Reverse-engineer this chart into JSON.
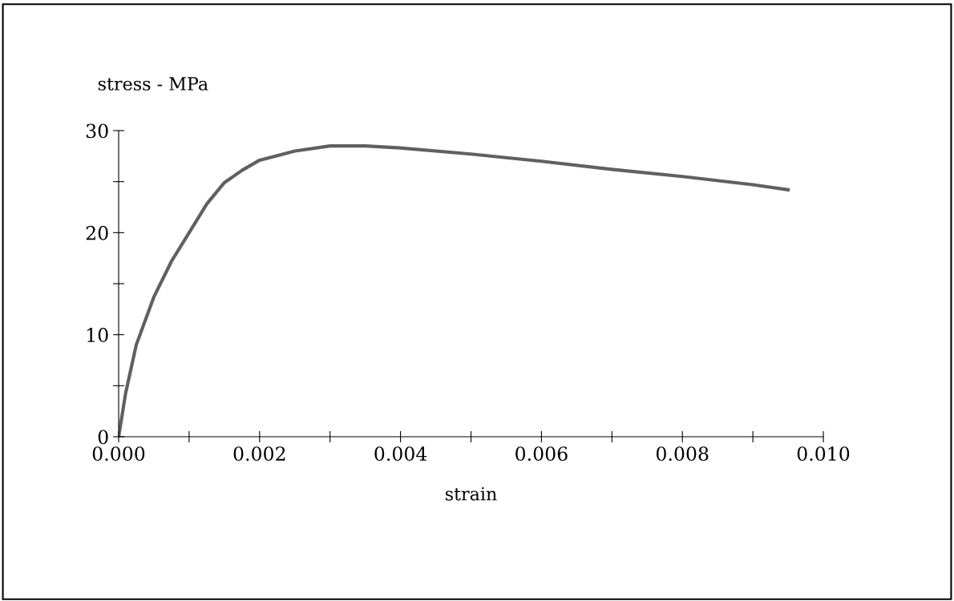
{
  "chart_data": {
    "type": "line",
    "ylabel": "stress - MPa",
    "xlabel": "strain",
    "x": [
      0,
      0.0001,
      0.00025,
      0.0005,
      0.00075,
      0.001,
      0.00125,
      0.0015,
      0.00175,
      0.002,
      0.0025,
      0.003,
      0.0035,
      0.004,
      0.005,
      0.006,
      0.007,
      0.008,
      0.009,
      0.0095
    ],
    "series": [
      {
        "color": "#606060",
        "values": [
          0,
          4.3,
          9,
          13.7,
          17.2,
          20,
          22.8,
          24.9,
          26.1,
          27.1,
          28,
          28.5,
          28.5,
          28.3,
          27.7,
          27.0,
          26.2,
          25.5,
          24.7,
          24.2
        ]
      }
    ],
    "xlim": [
      0,
      0.01
    ],
    "xticks": [
      {
        "value": 0,
        "label": "0.000"
      },
      {
        "value": 0.001,
        "label": null
      },
      {
        "value": 0.002,
        "label": "0.002"
      },
      {
        "value": 0.003,
        "label": null
      },
      {
        "value": 0.004,
        "label": "0.004"
      },
      {
        "value": 0.005,
        "label": null
      },
      {
        "value": 0.006,
        "label": "0.006"
      },
      {
        "value": 0.007,
        "label": null
      },
      {
        "value": 0.008,
        "label": "0.008"
      },
      {
        "value": 0.009,
        "label": null
      },
      {
        "value": 0.01,
        "label": "0.010"
      }
    ],
    "ylim": [
      0,
      30
    ],
    "yticks": [
      0,
      {
        "value": 5,
        "label": null
      },
      10,
      {
        "value": 15,
        "label": null
      },
      20,
      {
        "value": 25,
        "label": null
      },
      30
    ],
    "grid": false,
    "legend": false,
    "marker": "none",
    "line_style": "solid"
  }
}
